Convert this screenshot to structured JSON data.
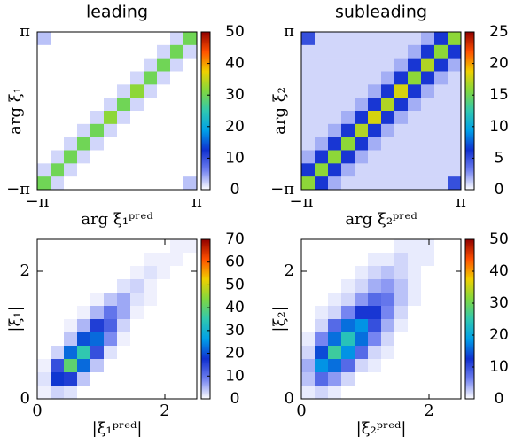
{
  "chart_data": [
    {
      "type": "heatmap",
      "title": "leading",
      "x_label": "arg ξ₁ᵖʳᵉᵈ",
      "y_label": "arg ξ₁",
      "xlim": [
        -3.14159,
        3.14159
      ],
      "ylim": [
        -3.14159,
        3.14159
      ],
      "xticks": [
        {
          "value": -3.14159,
          "label": "−π"
        },
        {
          "value": 3.14159,
          "label": "π"
        }
      ],
      "yticks": [
        {
          "value": -3.14159,
          "label": "−π"
        },
        {
          "value": 3.14159,
          "label": "π"
        }
      ],
      "clim": [
        0,
        50
      ],
      "cticks": [
        0,
        10,
        20,
        30,
        40,
        50
      ],
      "colormap": [
        "#ffffff",
        "#7080f0",
        "#1030d0",
        "#00a0e8",
        "#30c8b0",
        "#80d840",
        "#f0d000",
        "#ff5000",
        "#900000"
      ],
      "z": [
        [
          3,
          0,
          0,
          0,
          0,
          0,
          0,
          0,
          0,
          0,
          2,
          30
        ],
        [
          0,
          0,
          0,
          0,
          0,
          0,
          0,
          0,
          0,
          2,
          30,
          2
        ],
        [
          0,
          0,
          0,
          0,
          0,
          0,
          0,
          0,
          2,
          30,
          2,
          0
        ],
        [
          0,
          0,
          0,
          0,
          0,
          0,
          0,
          2,
          30,
          2,
          0,
          0
        ],
        [
          0,
          0,
          0,
          0,
          0,
          0,
          2,
          32,
          2,
          0,
          0,
          0
        ],
        [
          0,
          0,
          0,
          0,
          0,
          2,
          30,
          2,
          0,
          0,
          0,
          0
        ],
        [
          0,
          0,
          0,
          0,
          2,
          32,
          2,
          0,
          0,
          0,
          0,
          0
        ],
        [
          0,
          0,
          0,
          2,
          30,
          2,
          0,
          0,
          0,
          0,
          0,
          0
        ],
        [
          0,
          0,
          2,
          30,
          2,
          0,
          0,
          0,
          0,
          0,
          0,
          0
        ],
        [
          0,
          2,
          30,
          2,
          0,
          0,
          0,
          0,
          0,
          0,
          0,
          0
        ],
        [
          2,
          30,
          2,
          0,
          0,
          0,
          0,
          0,
          0,
          0,
          0,
          0
        ],
        [
          30,
          2,
          0,
          0,
          0,
          0,
          0,
          0,
          0,
          0,
          0,
          3
        ]
      ]
    },
    {
      "type": "heatmap",
      "title": "subleading",
      "x_label": "arg ξ₂ᵖʳᵉᵈ",
      "y_label": "arg ξ₂",
      "xlim": [
        -3.14159,
        3.14159
      ],
      "ylim": [
        -3.14159,
        3.14159
      ],
      "xticks": [
        {
          "value": -3.14159,
          "label": "−π"
        },
        {
          "value": 3.14159,
          "label": "π"
        }
      ],
      "yticks": [
        {
          "value": -3.14159,
          "label": "−π"
        },
        {
          "value": 3.14159,
          "label": "π"
        }
      ],
      "clim": [
        0,
        25
      ],
      "cticks": [
        0,
        5,
        10,
        15,
        20,
        25
      ],
      "colormap": [
        "#ffffff",
        "#7080f0",
        "#1030d0",
        "#00a0e8",
        "#30c8b0",
        "#80d840",
        "#f0d000",
        "#ff5000",
        "#900000"
      ],
      "z": [
        [
          5,
          1,
          1,
          1,
          1,
          1,
          1,
          1,
          1,
          2,
          6,
          16
        ],
        [
          1,
          1,
          1,
          1,
          1,
          1,
          1,
          1,
          2,
          6,
          16,
          6
        ],
        [
          1,
          1,
          1,
          1,
          1,
          1,
          1,
          2,
          6,
          17,
          6,
          2
        ],
        [
          1,
          1,
          1,
          1,
          1,
          1,
          2,
          6,
          16,
          6,
          2,
          1
        ],
        [
          1,
          1,
          1,
          1,
          1,
          2,
          6,
          18,
          6,
          2,
          1,
          1
        ],
        [
          1,
          1,
          1,
          1,
          2,
          6,
          17,
          6,
          2,
          1,
          1,
          1
        ],
        [
          1,
          1,
          1,
          2,
          6,
          18,
          6,
          2,
          1,
          1,
          1,
          1
        ],
        [
          1,
          1,
          2,
          6,
          17,
          6,
          2,
          1,
          1,
          1,
          1,
          1
        ],
        [
          1,
          2,
          6,
          16,
          6,
          2,
          1,
          1,
          1,
          1,
          1,
          1
        ],
        [
          2,
          6,
          16,
          6,
          2,
          1,
          1,
          1,
          1,
          1,
          1,
          1
        ],
        [
          6,
          16,
          6,
          2,
          1,
          1,
          1,
          1,
          1,
          1,
          1,
          1
        ],
        [
          16,
          6,
          2,
          1,
          1,
          1,
          1,
          1,
          1,
          1,
          1,
          5
        ]
      ]
    },
    {
      "type": "heatmap",
      "x_label": "|ξ₁ᵖʳᵉᵈ|",
      "y_label": "|ξ₁|",
      "xlim": [
        0,
        2.5
      ],
      "ylim": [
        0,
        2.5
      ],
      "xticks": [
        0,
        2
      ],
      "yticks": [
        0,
        2
      ],
      "clim": [
        0,
        70
      ],
      "cticks": [
        0,
        10,
        20,
        30,
        40,
        50,
        60,
        70
      ],
      "colormap": [
        "#ffffff",
        "#7080f0",
        "#1030d0",
        "#00a0e8",
        "#30c8b0",
        "#80d840",
        "#f0d000",
        "#ff5000",
        "#900000"
      ],
      "z": [
        [
          0,
          0,
          0,
          0,
          0,
          0,
          0,
          0,
          0,
          0,
          1,
          1
        ],
        [
          0,
          0,
          0,
          0,
          0,
          0,
          0,
          0,
          1,
          1,
          1,
          0
        ],
        [
          0,
          0,
          0,
          0,
          0,
          0,
          0,
          1,
          2,
          1,
          0,
          0
        ],
        [
          0,
          0,
          0,
          0,
          0,
          0,
          2,
          3,
          1,
          0,
          0,
          0
        ],
        [
          0,
          0,
          0,
          0,
          1,
          4,
          6,
          2,
          1,
          0,
          0,
          0
        ],
        [
          0,
          0,
          0,
          1,
          5,
          10,
          6,
          1,
          0,
          0,
          0,
          0
        ],
        [
          0,
          0,
          1,
          5,
          16,
          12,
          3,
          0,
          0,
          0,
          0,
          0
        ],
        [
          0,
          0,
          4,
          20,
          22,
          8,
          1,
          0,
          0,
          0,
          0,
          0
        ],
        [
          0,
          3,
          22,
          35,
          14,
          2,
          0,
          0,
          0,
          0,
          0,
          0
        ],
        [
          1,
          14,
          40,
          22,
          4,
          0,
          0,
          0,
          0,
          0,
          0,
          0
        ],
        [
          2,
          18,
          16,
          4,
          0,
          0,
          0,
          0,
          0,
          0,
          0,
          0
        ],
        [
          1,
          3,
          2,
          0,
          0,
          0,
          0,
          0,
          0,
          0,
          0,
          0
        ]
      ]
    },
    {
      "type": "heatmap",
      "x_label": "|ξ₂ᵖʳᵉᵈ|",
      "y_label": "|ξ₂|",
      "xlim": [
        0,
        2.5
      ],
      "ylim": [
        0,
        2.5
      ],
      "xticks": [
        0,
        2
      ],
      "yticks": [
        0,
        2
      ],
      "clim": [
        0,
        50
      ],
      "cticks": [
        0,
        10,
        20,
        30,
        40,
        50
      ],
      "colormap": [
        "#ffffff",
        "#7080f0",
        "#1030d0",
        "#00a0e8",
        "#30c8b0",
        "#80d840",
        "#f0d000",
        "#ff5000",
        "#900000"
      ],
      "z": [
        [
          0,
          0,
          0,
          0,
          0,
          0,
          0,
          1,
          1,
          1,
          0,
          0
        ],
        [
          0,
          0,
          0,
          0,
          0,
          1,
          1,
          2,
          1,
          1,
          0,
          0
        ],
        [
          0,
          0,
          0,
          0,
          1,
          2,
          3,
          2,
          1,
          0,
          0,
          0
        ],
        [
          0,
          0,
          0,
          1,
          2,
          4,
          5,
          3,
          1,
          0,
          0,
          0
        ],
        [
          0,
          0,
          1,
          2,
          5,
          8,
          7,
          3,
          1,
          0,
          0,
          0
        ],
        [
          0,
          1,
          2,
          6,
          12,
          12,
          6,
          2,
          0,
          0,
          0,
          0
        ],
        [
          0,
          2,
          8,
          16,
          18,
          10,
          4,
          1,
          0,
          0,
          0,
          0
        ],
        [
          1,
          6,
          16,
          24,
          16,
          6,
          2,
          0,
          0,
          0,
          0,
          0
        ],
        [
          2,
          14,
          26,
          18,
          8,
          2,
          1,
          0,
          0,
          0,
          0,
          0
        ],
        [
          4,
          18,
          16,
          8,
          2,
          1,
          0,
          0,
          0,
          0,
          0,
          0
        ],
        [
          3,
          8,
          5,
          2,
          0,
          0,
          0,
          0,
          0,
          0,
          0,
          0
        ],
        [
          1,
          2,
          1,
          0,
          0,
          0,
          0,
          0,
          0,
          0,
          0,
          0
        ]
      ]
    }
  ]
}
